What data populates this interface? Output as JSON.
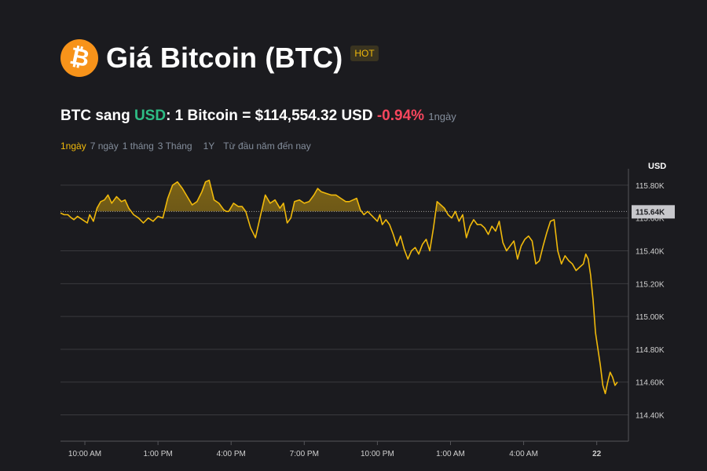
{
  "header": {
    "logo_glyph": "₿",
    "logo_icon": "bitcoin-icon",
    "logo_color": "#f7931a",
    "title": "Giá Bitcoin (BTC)",
    "badge": "HOT"
  },
  "price": {
    "prefix": "BTC sang ",
    "quote": "USD",
    "mid": ": 1 Bitcoin = $114,554.32 USD ",
    "change": "-0.94%",
    "period": "1ngày"
  },
  "tabs": [
    {
      "label": "1ngày",
      "active": true
    },
    {
      "label": "7 ngày",
      "active": false
    },
    {
      "label": "1 tháng",
      "active": false
    },
    {
      "label": "3 Tháng",
      "active": false
    },
    {
      "label": "1Y",
      "active": false
    },
    {
      "label": "Từ đầu năm đến nay",
      "active": false
    }
  ],
  "colors": {
    "line": "#f0b90b",
    "accent_green": "#2ebd85",
    "accent_red": "#f6465d",
    "grid": "#3a3a3e",
    "background": "#1b1b1f"
  },
  "chart_data": {
    "type": "area",
    "ylabel": "USD",
    "ylim": [
      114240,
      115900
    ],
    "y_ticks": [
      114400,
      114600,
      114800,
      115000,
      115200,
      115400,
      115600,
      115800
    ],
    "y_tick_labels": [
      "114.40K",
      "114.60K",
      "114.80K",
      "115.00K",
      "115.20K",
      "115.40K",
      "115.60K",
      "115.80K"
    ],
    "x_ticks": [
      1,
      4,
      7,
      10,
      13,
      16,
      19,
      22
    ],
    "x_tick_labels": [
      "10:00 AM",
      "1:00 PM",
      "4:00 PM",
      "7:00 PM",
      "10:00 PM",
      "1:00 AM",
      "4:00 AM",
      "22"
    ],
    "xlim": [
      0,
      23.3
    ],
    "reference_value": 115640,
    "reference_label": "115.64K",
    "grid": true,
    "series": [
      {
        "x": [
          0,
          0.15,
          0.3,
          0.45,
          0.55,
          0.7,
          0.9,
          1.1,
          1.2,
          1.35,
          1.5,
          1.65,
          1.8,
          1.95,
          2.1,
          2.3,
          2.5,
          2.65,
          2.8,
          3.0,
          3.2,
          3.4,
          3.6,
          3.8,
          4.0,
          4.2,
          4.4,
          4.6,
          4.8,
          5.0,
          5.2,
          5.4,
          5.6,
          5.8,
          5.95,
          6.1,
          6.3,
          6.5,
          6.7,
          6.8,
          6.9,
          7.1,
          7.3,
          7.45,
          7.6,
          7.8,
          8.0,
          8.2,
          8.4,
          8.6,
          8.8,
          9.0,
          9.15,
          9.3,
          9.45,
          9.6,
          9.8,
          10.0,
          10.2,
          10.4,
          10.55,
          10.7,
          10.9,
          11.1,
          11.3,
          11.5,
          11.7,
          11.85,
          12.0,
          12.15,
          12.3,
          12.45,
          12.6,
          12.8,
          13.0,
          13.1,
          13.2,
          13.35,
          13.5,
          13.65,
          13.8,
          13.95,
          14.1,
          14.25,
          14.4,
          14.55,
          14.7,
          14.85,
          15.0,
          15.15,
          15.3,
          15.45,
          15.6,
          15.75,
          15.9,
          16.05,
          16.2,
          16.35,
          16.5,
          16.65,
          16.8,
          16.95,
          17.1,
          17.25,
          17.4,
          17.55,
          17.7,
          17.85,
          18.0,
          18.15,
          18.3,
          18.45,
          18.6,
          18.75,
          18.9,
          19.05,
          19.2,
          19.35,
          19.5,
          19.65,
          19.8,
          19.95,
          20.1,
          20.25,
          20.4,
          20.55,
          20.7,
          20.85,
          21.0,
          21.15,
          21.3,
          21.45,
          21.55,
          21.65,
          21.75,
          21.85,
          21.95,
          22.05,
          22.15,
          22.25,
          22.35,
          22.45,
          22.55,
          22.65,
          22.75,
          22.85
        ],
        "values": [
          115630,
          115620,
          115620,
          115600,
          115590,
          115610,
          115590,
          115570,
          115620,
          115580,
          115660,
          115700,
          115710,
          115740,
          115690,
          115730,
          115700,
          115710,
          115660,
          115620,
          115600,
          115570,
          115600,
          115580,
          115610,
          115600,
          115720,
          115800,
          115820,
          115780,
          115730,
          115680,
          115700,
          115760,
          115820,
          115830,
          115710,
          115690,
          115650,
          115640,
          115640,
          115690,
          115670,
          115670,
          115640,
          115540,
          115480,
          115610,
          115740,
          115690,
          115710,
          115660,
          115690,
          115570,
          115600,
          115700,
          115710,
          115690,
          115700,
          115740,
          115780,
          115760,
          115750,
          115740,
          115740,
          115720,
          115700,
          115700,
          115710,
          115720,
          115650,
          115620,
          115640,
          115610,
          115580,
          115620,
          115560,
          115590,
          115560,
          115500,
          115430,
          115490,
          115410,
          115350,
          115400,
          115420,
          115380,
          115440,
          115470,
          115400,
          115540,
          115700,
          115680,
          115660,
          115620,
          115600,
          115640,
          115580,
          115620,
          115480,
          115550,
          115590,
          115560,
          115560,
          115540,
          115500,
          115550,
          115520,
          115580,
          115450,
          115400,
          115430,
          115460,
          115350,
          115430,
          115470,
          115490,
          115460,
          115320,
          115340,
          115430,
          115510,
          115580,
          115590,
          115400,
          115320,
          115370,
          115340,
          115320,
          115280,
          115300,
          115320,
          115380,
          115350,
          115250,
          115100,
          114900,
          114800,
          114700,
          114580,
          114530,
          114600,
          114660,
          114630,
          114580,
          114600
        ]
      }
    ]
  }
}
